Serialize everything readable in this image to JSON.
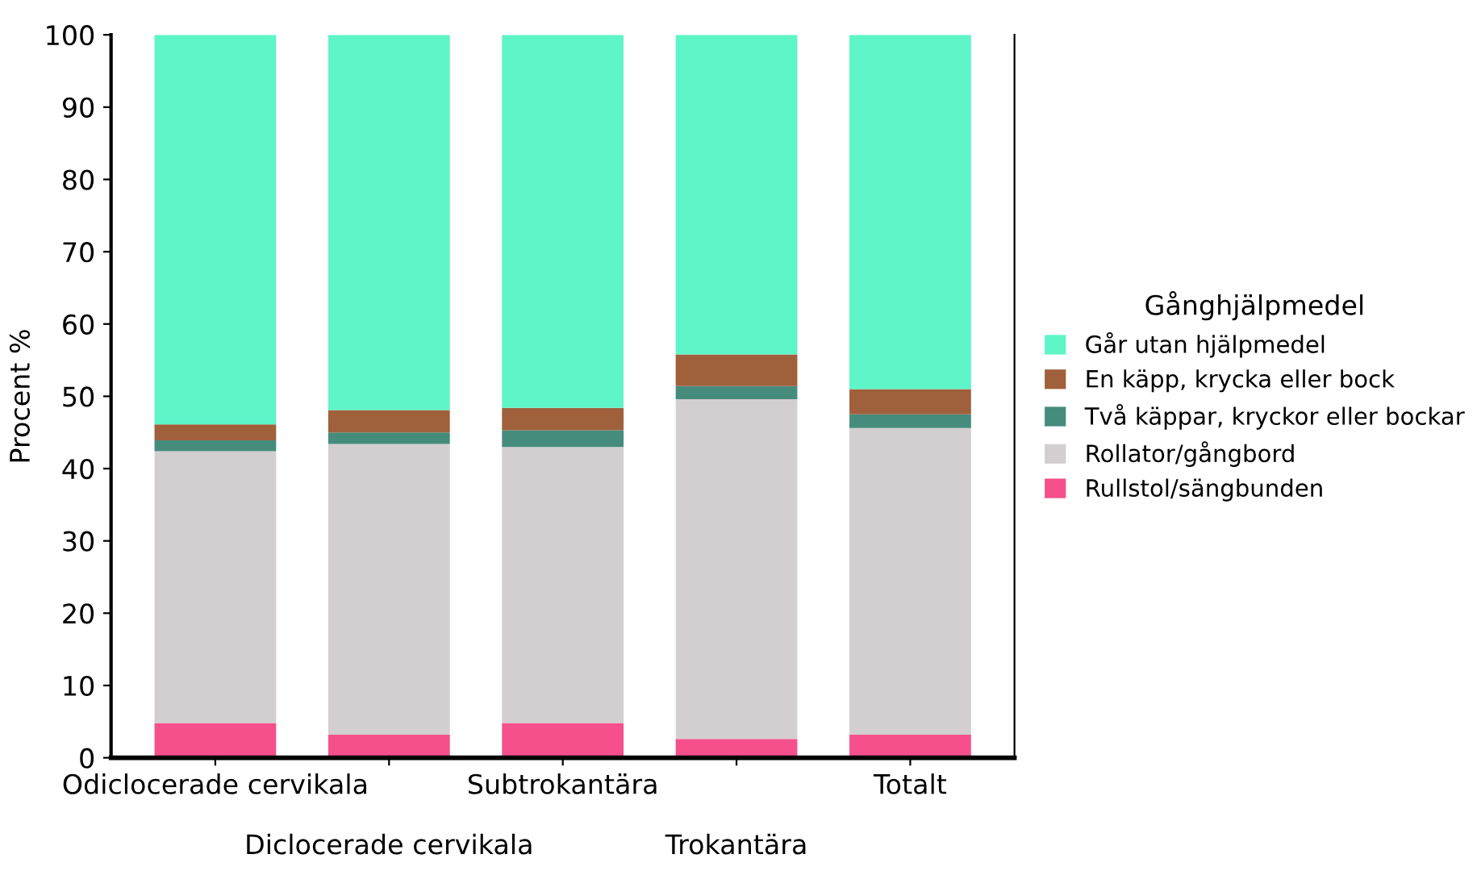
{
  "chart_data": {
    "type": "bar",
    "stacked": true,
    "ylabel": "Procent %",
    "legend_title": "Gånghjälpmedel",
    "legend": "right",
    "categories": [
      "Odiclocerade cervikala",
      "Diclocerade cervikala",
      "Subtrokantära",
      "Trokantära",
      "Totalt"
    ],
    "ylim": [
      0,
      100
    ],
    "yticks": [
      0,
      10,
      20,
      30,
      40,
      50,
      60,
      70,
      80,
      90,
      100
    ],
    "grid": false,
    "series": [
      {
        "name": "Rullstol/sängbunden",
        "color": "#f5508c",
        "values": [
          4.8,
          3.2,
          4.8,
          2.6,
          3.2
        ]
      },
      {
        "name": "Rollator/gångbord",
        "color": "#d3cfd0",
        "values": [
          37.6,
          40.2,
          38.2,
          47.0,
          42.4
        ]
      },
      {
        "name": "Två käppar, kryckor eller bockar",
        "color": "#468c7c",
        "values": [
          1.5,
          1.6,
          2.3,
          1.8,
          1.9
        ]
      },
      {
        "name": "En käpp, krycka eller bock",
        "color": "#a0603c",
        "values": [
          2.2,
          3.1,
          3.1,
          4.4,
          3.5
        ]
      },
      {
        "name": "Går utan hjälpmedel",
        "color": "#5ef5c8",
        "values": [
          53.9,
          51.9,
          51.6,
          44.2,
          49.0
        ]
      }
    ]
  }
}
